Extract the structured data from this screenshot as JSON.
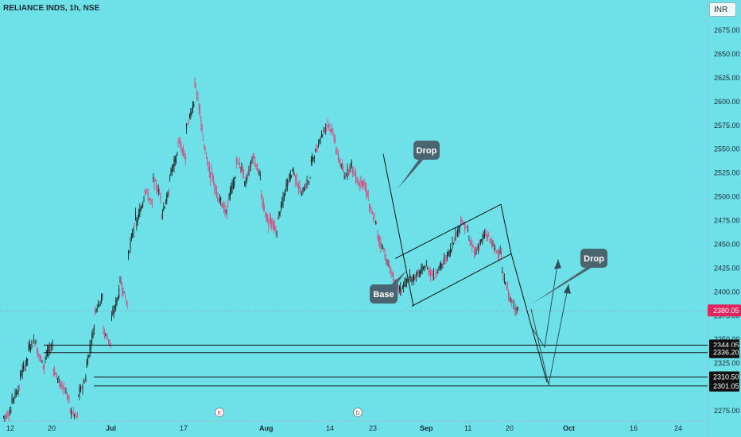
{
  "header": {
    "symbol_title": "RELIANCE INDS, 1h, NSE",
    "currency": "INR"
  },
  "colors": {
    "background": "#6ee0e8",
    "up": "#1b1b1b",
    "down": "#d9457a",
    "price_tag": "#e0245e",
    "level_tag": "#111111",
    "note_bg": "#4b6570"
  },
  "chart_data": {
    "type": "candlestick",
    "title": "RELIANCE INDS, 1h, NSE",
    "ylabel": "",
    "ylim": [
      2262,
      2710
    ],
    "y_ticks": [
      "2675.00",
      "2650.00",
      "2625.00",
      "2600.00",
      "2575.00",
      "2550.00",
      "2525.00",
      "2500.00",
      "2475.00",
      "2450.00",
      "2425.00",
      "2400.00",
      "2375.00",
      "2350.00",
      "2325.00",
      "2275.00"
    ],
    "x_ticks": [
      "12",
      "20",
      "Jul",
      "17",
      "Aug",
      "14",
      "23",
      "Sep",
      "11",
      "20",
      "Oct",
      "16",
      "24"
    ],
    "last_price": "2380.05",
    "levels": [
      {
        "value": 2344.05,
        "label": "2344.05"
      },
      {
        "value": 2336.2,
        "label": "2336.20"
      },
      {
        "value": 2310.5,
        "label": "2310.50"
      },
      {
        "value": 2301.05,
        "label": "2301.05"
      }
    ],
    "annotations": [
      {
        "text": "Drop",
        "kind": "callout"
      },
      {
        "text": "Base",
        "kind": "callout"
      },
      {
        "text": "Drop",
        "kind": "callout"
      }
    ],
    "event_markers": [
      "E",
      "D"
    ],
    "price_path": [
      [
        2268,
        2275
      ],
      [
        2285,
        2300
      ],
      [
        2310,
        2330
      ],
      [
        2340,
        2350
      ],
      [
        2340,
        2320
      ],
      [
        2330,
        2345
      ],
      [
        2320,
        2300
      ],
      [
        2305,
        2285
      ],
      [
        2275,
        2268
      ],
      [
        2290,
        2310
      ],
      [
        2320,
        2365
      ],
      [
        2380,
        2395
      ],
      [
        2360,
        2345
      ],
      [
        2370,
        2400
      ],
      [
        2415,
        2385
      ],
      [
        2435,
        2480
      ],
      [
        2470,
        2500
      ],
      [
        2510,
        2490
      ],
      [
        2520,
        2500
      ],
      [
        2480,
        2505
      ],
      [
        2520,
        2545
      ],
      [
        2560,
        2540
      ],
      [
        2570,
        2600
      ],
      [
        2625,
        2570
      ],
      [
        2560,
        2520
      ],
      [
        2530,
        2490
      ],
      [
        2500,
        2480
      ],
      [
        2495,
        2520
      ],
      [
        2540,
        2525
      ],
      [
        2510,
        2540
      ],
      [
        2545,
        2520
      ],
      [
        2500,
        2470
      ],
      [
        2480,
        2460
      ],
      [
        2475,
        2505
      ],
      [
        2510,
        2530
      ],
      [
        2525,
        2500
      ],
      [
        2505,
        2520
      ],
      [
        2535,
        2555
      ],
      [
        2560,
        2575
      ],
      [
        2580,
        2560
      ],
      [
        2550,
        2525
      ],
      [
        2520,
        2535
      ],
      [
        2530,
        2510
      ],
      [
        2520,
        2500
      ],
      [
        2490,
        2470
      ],
      [
        2460,
        2440
      ],
      [
        2435,
        2415
      ],
      [
        2410,
        2400
      ],
      [
        2405,
        2415
      ],
      [
        2410,
        2420
      ],
      [
        2418,
        2428
      ],
      [
        2425,
        2415
      ],
      [
        2420,
        2430
      ],
      [
        2432,
        2445
      ],
      [
        2450,
        2470
      ],
      [
        2475,
        2465
      ],
      [
        2455,
        2440
      ],
      [
        2445,
        2460
      ],
      [
        2462,
        2450
      ],
      [
        2445,
        2440
      ],
      [
        2420,
        2395
      ],
      [
        2390,
        2380
      ]
    ]
  },
  "footer": {
    "last_price_label": "2380.05"
  }
}
